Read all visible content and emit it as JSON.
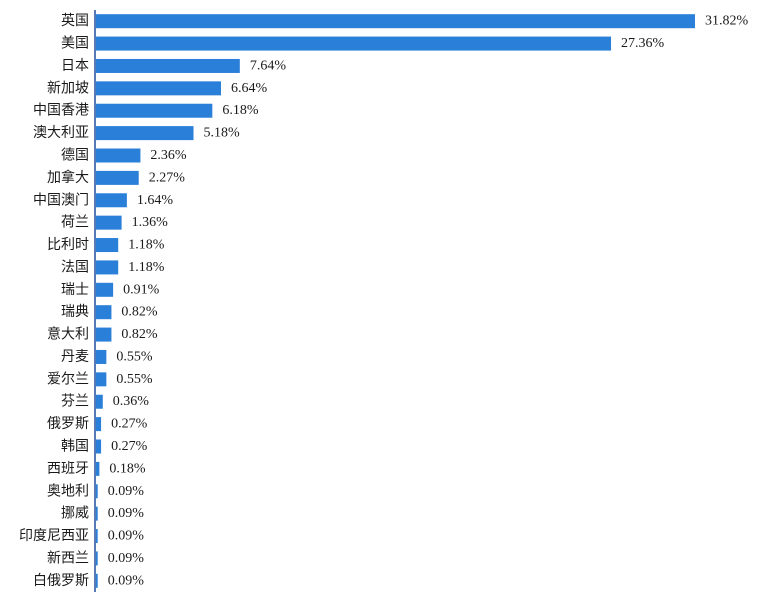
{
  "chart_data": {
    "type": "bar",
    "orientation": "horizontal",
    "categories": [
      "英国",
      "美国",
      "日本",
      "新加坡",
      "中国香港",
      "澳大利亚",
      "德国",
      "加拿大",
      "中国澳门",
      "荷兰",
      "比利时",
      "法国",
      "瑞士",
      "瑞典",
      "意大利",
      "丹麦",
      "爱尔兰",
      "芬兰",
      "俄罗斯",
      "韩国",
      "西班牙",
      "奥地利",
      "挪威",
      "印度尼西亚",
      "新西兰",
      "白俄罗斯"
    ],
    "values": [
      31.82,
      27.36,
      7.64,
      6.64,
      6.18,
      5.18,
      2.36,
      2.27,
      1.64,
      1.36,
      1.18,
      1.18,
      0.91,
      0.82,
      0.82,
      0.55,
      0.55,
      0.36,
      0.27,
      0.27,
      0.18,
      0.09,
      0.09,
      0.09,
      0.09,
      0.09
    ],
    "value_labels": [
      "31.82%",
      "27.36%",
      "7.64%",
      "6.64%",
      "6.18%",
      "5.18%",
      "2.36%",
      "2.27%",
      "1.64%",
      "1.36%",
      "1.18%",
      "1.18%",
      "0.91%",
      "0.82%",
      "0.82%",
      "0.55%",
      "0.55%",
      "0.36%",
      "0.27%",
      "0.27%",
      "0.18%",
      "0.09%",
      "0.09%",
      "0.09%",
      "0.09%",
      "0.09%"
    ],
    "unit": "%",
    "xlim": [
      0,
      31.82
    ],
    "bar_color": "#2a7fd9",
    "axis_color": "#1f4e9a",
    "grid": false,
    "legend": "none"
  }
}
